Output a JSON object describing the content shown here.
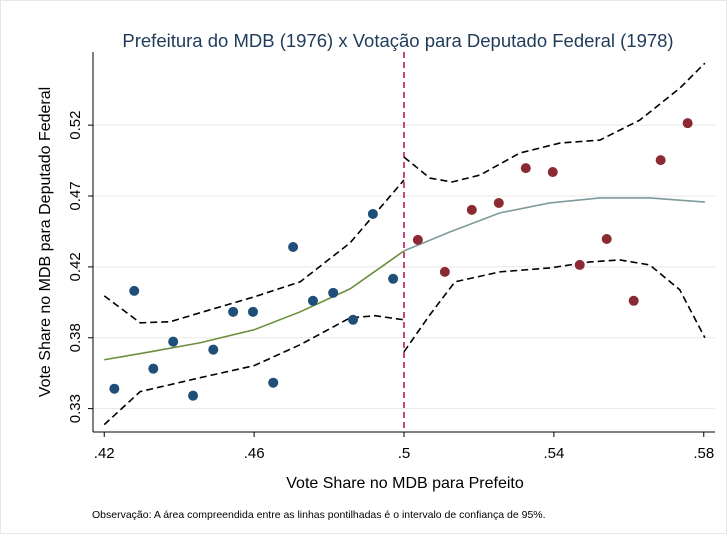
{
  "chart_data": {
    "type": "scatter",
    "title": "Prefeitura do MDB (1976) x Votação para Deputado Federal (1978)",
    "x_label": "Vote Share no MDB para Prefeito",
    "y_label": "Vote Share no MDB para Deputado Federal",
    "note": "Observação: A área compreendida entre as linhas pontilhadas é o intervalo de confiança de 95%.",
    "xlim": [
      0.417,
      0.583
    ],
    "ylim": [
      0.315,
      0.567
    ],
    "xticks": [
      {
        "value": 0.42,
        "label": ".42"
      },
      {
        "value": 0.46,
        "label": ".46"
      },
      {
        "value": 0.5,
        "label": ".5"
      },
      {
        "value": 0.54,
        "label": ".54"
      },
      {
        "value": 0.58,
        "label": ".58"
      }
    ],
    "yticks": [
      {
        "value": 0.3305,
        "label": "0.33"
      },
      {
        "value": 0.3775,
        "label": "0.38"
      },
      {
        "value": 0.4245,
        "label": "0.42"
      },
      {
        "value": 0.4715,
        "label": "0.47"
      },
      {
        "value": 0.5185,
        "label": "0.52"
      }
    ],
    "grid": true,
    "cutoff": 0.5,
    "cutoff_color": "#c2185b",
    "series": [
      {
        "color": "#1f4e79",
        "x": [
          0.4227,
          0.428,
          0.4331,
          0.4384,
          0.4437,
          0.4491,
          0.4544,
          0.4597,
          0.4651,
          0.4704,
          0.4757,
          0.4811,
          0.4864,
          0.4917,
          0.4971
        ],
        "values": [
          0.3437,
          0.4086,
          0.357,
          0.3749,
          0.3391,
          0.3696,
          0.3947,
          0.3947,
          0.3477,
          0.4377,
          0.402,
          0.4073,
          0.3894,
          0.4596,
          0.4166
        ]
      },
      {
        "color": "#8b2a33",
        "x": [
          0.5037,
          0.5109,
          0.5181,
          0.5253,
          0.5325,
          0.5397,
          0.5469,
          0.5541,
          0.5613,
          0.5685,
          0.5757
        ],
        "values": [
          0.4424,
          0.4212,
          0.4623,
          0.4669,
          0.49,
          0.4874,
          0.4258,
          0.443,
          0.402,
          0.4953,
          0.5198
        ]
      }
    ],
    "fits": [
      {
        "color": "#6b8e3c",
        "dashed": false,
        "x": [
          0.42,
          0.4323,
          0.4456,
          0.46,
          0.4723,
          0.4856,
          0.5
        ],
        "values": [
          0.3629,
          0.3682,
          0.3742,
          0.3828,
          0.3947,
          0.4099,
          0.4351
        ]
      },
      {
        "color": "#000000",
        "dashed": true,
        "x": [
          0.42,
          0.4296,
          0.4376,
          0.4456,
          0.46,
          0.4723,
          0.4856,
          0.5
        ],
        "values": [
          0.4053,
          0.3874,
          0.3881,
          0.3941,
          0.4046,
          0.4146,
          0.4404,
          0.4821
        ]
      },
      {
        "color": "#000000",
        "dashed": true,
        "x": [
          0.42,
          0.4296,
          0.4456,
          0.46,
          0.4723,
          0.4856,
          0.4923,
          0.5
        ],
        "values": [
          0.3199,
          0.3418,
          0.351,
          0.359,
          0.3729,
          0.3907,
          0.3921,
          0.3894
        ]
      },
      {
        "color": "#7f9a9a",
        "dashed": false,
        "x": [
          0.5,
          0.5123,
          0.5256,
          0.5389,
          0.5523,
          0.5656,
          0.5803
        ],
        "values": [
          0.4351,
          0.4477,
          0.4603,
          0.4669,
          0.4702,
          0.4702,
          0.4675
        ]
      },
      {
        "color": "#000000",
        "dashed": true,
        "x": [
          0.5,
          0.5069,
          0.5128,
          0.5203,
          0.5309,
          0.5416,
          0.5523,
          0.5629,
          0.5736,
          0.5803
        ],
        "values": [
          0.4973,
          0.4834,
          0.4808,
          0.4854,
          0.5,
          0.5066,
          0.5086,
          0.5218,
          0.543,
          0.5596
        ]
      },
      {
        "color": "#000000",
        "dashed": true,
        "x": [
          0.5,
          0.5069,
          0.5136,
          0.5256,
          0.5389,
          0.5496,
          0.5576,
          0.5656,
          0.5736,
          0.5803
        ],
        "values": [
          0.3682,
          0.3927,
          0.4146,
          0.4212,
          0.4238,
          0.4278,
          0.4291,
          0.4258,
          0.4093,
          0.3775
        ]
      }
    ]
  }
}
